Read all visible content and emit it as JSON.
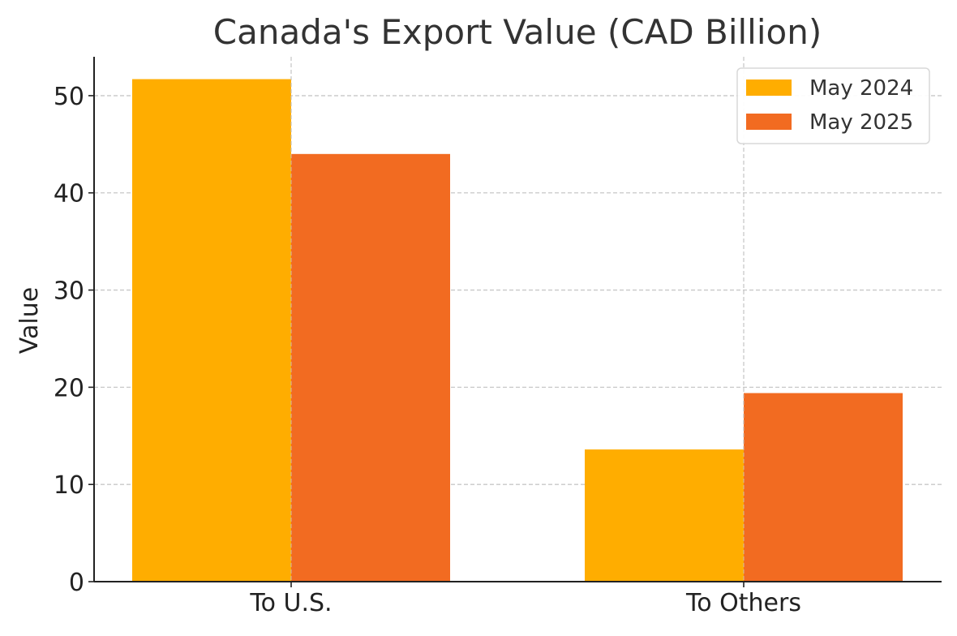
{
  "chart_data": {
    "type": "bar",
    "title": "Canada's Export Value (CAD Billion)",
    "xlabel": "",
    "ylabel": "Value",
    "categories": [
      "To U.S.",
      "To Others"
    ],
    "series": [
      {
        "name": "May 2024",
        "values": [
          51.7,
          13.6
        ],
        "color": "#ffad00"
      },
      {
        "name": "May 2025",
        "values": [
          44.0,
          19.4
        ],
        "color": "#f26b21"
      }
    ],
    "ylim": [
      0,
      54
    ],
    "yticks": [
      0,
      10,
      20,
      30,
      40,
      50
    ],
    "grid": true,
    "legend_position": "top-right"
  },
  "colors": {
    "text": "#333333",
    "axis": "#222222",
    "grid": "#c8c8c8"
  }
}
